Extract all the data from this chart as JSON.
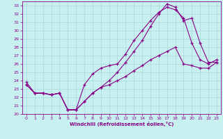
{
  "xlabel": "Windchill (Refroidissement éolien,°C)",
  "background_color": "#c8f0f0",
  "grid_color": "#a8d8d8",
  "line_color": "#880088",
  "xlim": [
    -0.5,
    23.5
  ],
  "ylim": [
    20,
    33.5
  ],
  "yticks": [
    20,
    21,
    22,
    23,
    24,
    25,
    26,
    27,
    28,
    29,
    30,
    31,
    32,
    33
  ],
  "xticks": [
    0,
    1,
    2,
    3,
    4,
    5,
    6,
    7,
    8,
    9,
    10,
    11,
    12,
    13,
    14,
    15,
    16,
    17,
    18,
    19,
    20,
    21,
    22,
    23
  ],
  "line1_x": [
    0,
    1,
    2,
    3,
    4,
    5,
    6,
    7,
    8,
    9,
    10,
    11,
    12,
    13,
    14,
    15,
    16,
    17,
    18,
    19,
    20,
    21,
    22,
    23
  ],
  "line1_y": [
    23.8,
    22.5,
    22.5,
    22.3,
    22.5,
    20.5,
    20.5,
    23.5,
    24.8,
    25.5,
    25.8,
    26.0,
    27.2,
    28.8,
    30.0,
    31.2,
    32.2,
    32.8,
    32.5,
    31.5,
    28.5,
    26.5,
    26.0,
    26.5
  ],
  "line2_x": [
    0,
    1,
    2,
    3,
    4,
    5,
    6,
    7,
    8,
    9,
    10,
    11,
    12,
    13,
    14,
    15,
    16,
    17,
    18,
    19,
    20,
    21,
    22,
    23
  ],
  "line2_y": [
    23.5,
    22.5,
    22.5,
    22.3,
    22.5,
    20.5,
    20.5,
    21.5,
    22.5,
    23.2,
    23.5,
    24.0,
    24.5,
    25.2,
    25.8,
    26.5,
    27.0,
    27.5,
    28.0,
    26.0,
    25.8,
    25.5,
    25.5,
    26.2
  ],
  "line3_x": [
    0,
    1,
    2,
    3,
    4,
    5,
    6,
    7,
    8,
    9,
    10,
    11,
    12,
    13,
    14,
    15,
    16,
    17,
    18,
    19,
    20,
    21,
    22,
    23
  ],
  "line3_y": [
    23.5,
    22.5,
    22.5,
    22.3,
    22.5,
    20.5,
    20.5,
    21.5,
    22.5,
    23.2,
    24.0,
    25.0,
    26.2,
    27.5,
    28.8,
    30.5,
    32.0,
    33.2,
    32.8,
    31.2,
    31.5,
    28.5,
    26.2,
    26.2
  ]
}
